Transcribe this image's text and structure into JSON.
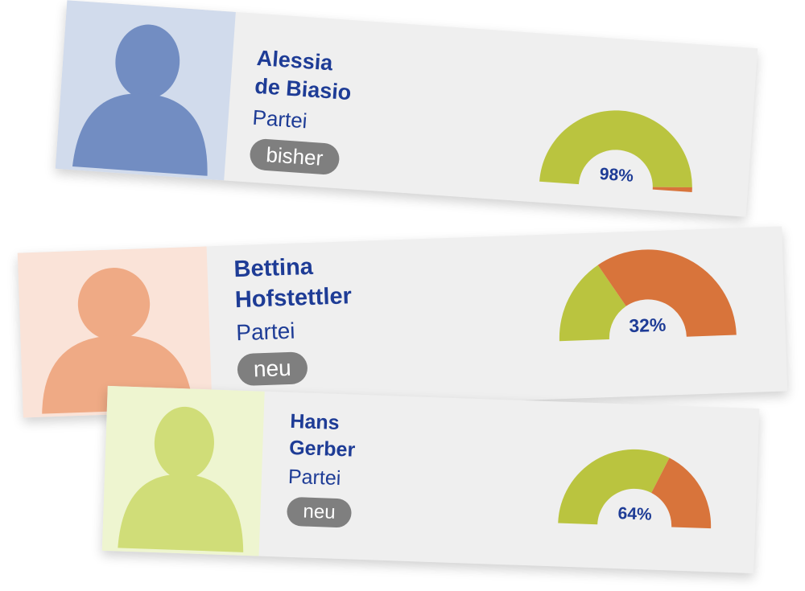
{
  "colors": {
    "text": "#1e3c96",
    "badge": "#7f7f7f",
    "gauge_green": "#bac43f",
    "gauge_orange": "#d8743b",
    "card": "#efefef"
  },
  "candidates": [
    {
      "name_line1": "Alessia",
      "name_line2": "de Biasio",
      "party": "Partei",
      "status": "bisher",
      "percent": 98,
      "percent_label": "98%",
      "photo_bg": "#d1dbec",
      "photo_fg": "#728dc2",
      "icon": "person-icon"
    },
    {
      "name_line1": "Bettina",
      "name_line2": "Hofstettler",
      "party": "Partei",
      "status": "neu",
      "percent": 32,
      "percent_label": "32%",
      "photo_bg": "#fae3d8",
      "photo_fg": "#efaa85",
      "icon": "person-icon"
    },
    {
      "name_line1": "Hans",
      "name_line2": "Gerber",
      "party": "Partei",
      "status": "neu",
      "percent": 64,
      "percent_label": "64%",
      "photo_bg": "#eef5d0",
      "photo_fg": "#d0dd78",
      "icon": "person-icon"
    }
  ]
}
